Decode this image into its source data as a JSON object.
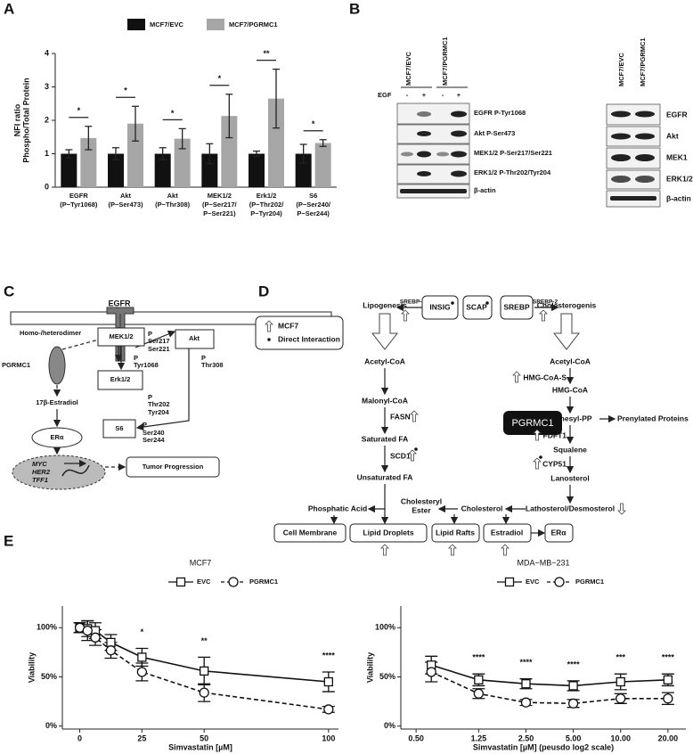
{
  "panel_labels": [
    "A",
    "B",
    "C",
    "D",
    "E"
  ],
  "chart_data": [
    {
      "type": "bar",
      "y_label": [
        "NFI ratio",
        "Phospho/Total Protein"
      ],
      "categories": [
        [
          "EGFR",
          "(P−Tyr1068)"
        ],
        [
          "Akt",
          "(P−Ser473)"
        ],
        [
          "Akt",
          "(P−Thr308)"
        ],
        [
          "MEK1/2",
          "(P−Ser217/",
          "P−Ser221)"
        ],
        [
          "Erk1/2",
          "(P−Thr202/",
          "P−Tyr204)"
        ],
        [
          "S6",
          "(P−Ser240/",
          "P−Ser244)"
        ]
      ],
      "series": [
        {
          "name": "MCF7/EVC",
          "color": "#111111",
          "values": [
            1,
            1,
            1,
            1,
            1,
            1
          ],
          "errors": [
            0.12,
            0.18,
            0.18,
            0.3,
            0.08,
            0.28
          ]
        },
        {
          "name": "MCF7/PGRMC1",
          "color": "#a6a6a6",
          "values": [
            1.47,
            1.9,
            1.45,
            2.13,
            2.65,
            1.32
          ],
          "errors": [
            0.35,
            0.52,
            0.3,
            0.65,
            0.88,
            0.1
          ]
        }
      ],
      "significance": [
        "*",
        "*",
        "*",
        "*",
        "**",
        "*"
      ],
      "ylim": [
        0,
        4
      ],
      "yticks": [
        0,
        1,
        2,
        3,
        4
      ]
    },
    {
      "type": "line",
      "title": "MCF7",
      "x_label": "Simvastatin [µM]",
      "y_label": "Viability",
      "x": [
        0,
        3.125,
        6.25,
        12.5,
        25,
        50,
        100
      ],
      "series": [
        {
          "name": "EVC",
          "color": "#111111",
          "marker": "square",
          "dash": false,
          "values": [
            100,
            99,
            97,
            85,
            70,
            56,
            45
          ],
          "errors": [
            5,
            8,
            8,
            8,
            9,
            14,
            10
          ]
        },
        {
          "name": "PGRMC1",
          "color": "#111111",
          "marker": "circle",
          "dash": true,
          "values": [
            100,
            97,
            90,
            77,
            55,
            34,
            17
          ],
          "errors": [
            5,
            10,
            8,
            8,
            9,
            9,
            3
          ]
        }
      ],
      "annotations": [
        {
          "x": 25,
          "label": "*"
        },
        {
          "x": 50,
          "label": "**"
        },
        {
          "x": 100,
          "label": "****"
        }
      ],
      "xlim": [
        -7,
        104
      ],
      "xticks": [
        0,
        25,
        50,
        100
      ],
      "ylim": [
        -3,
        122
      ],
      "yticks": [
        {
          "value": 0,
          "label": "0%"
        },
        {
          "value": 50,
          "label": "50%"
        },
        {
          "value": 100,
          "label": "100%"
        }
      ]
    },
    {
      "type": "line",
      "title": "MDA−MB−231",
      "x_label": "Simvastatin [µM] (peusdo log2 scale)",
      "y_label": "Viability",
      "x_scale": "log2",
      "x": [
        0.625,
        1.25,
        2.5,
        5,
        10,
        20
      ],
      "series": [
        {
          "name": "EVC",
          "color": "#111111",
          "marker": "square",
          "dash": false,
          "values": [
            62,
            47,
            43,
            41,
            45,
            47
          ],
          "errors": [
            9,
            6,
            5,
            5,
            8,
            6
          ]
        },
        {
          "name": "PGRMC1",
          "color": "#111111",
          "marker": "circle",
          "dash": true,
          "values": [
            55,
            33,
            24,
            23,
            28,
            28
          ],
          "errors": [
            10,
            5,
            3,
            4,
            5,
            6
          ]
        }
      ],
      "annotations": [
        {
          "x": 1.25,
          "label": "****"
        },
        {
          "x": 2.5,
          "label": "****"
        },
        {
          "x": 5,
          "label": "****"
        },
        {
          "x": 10,
          "label": "***"
        },
        {
          "x": 20,
          "label": "****"
        }
      ],
      "xlim": [
        0.4,
        26
      ],
      "xticks": [
        {
          "value": 0.5,
          "label": "0.50"
        },
        {
          "value": 1.25,
          "label": "1.25"
        },
        {
          "value": 2.5,
          "label": "2.50"
        },
        {
          "value": 5,
          "label": "5.00"
        },
        {
          "value": 10,
          "label": "10.00"
        },
        {
          "value": 20,
          "label": "20.00"
        }
      ],
      "ylim": [
        -3,
        122
      ],
      "yticks": [
        {
          "value": 0,
          "label": "0%"
        },
        {
          "value": 50,
          "label": "50%"
        },
        {
          "value": 100,
          "label": "100%"
        }
      ]
    }
  ],
  "blot": {
    "left_groups": [
      "MCF7/EVC",
      "MCF7/PGRMC1"
    ],
    "treatment": "EGF",
    "lanes": [
      "-",
      "+",
      "-",
      "+"
    ],
    "left_rows": [
      "EGFR P-Tyr1068",
      "Akt P-Ser473",
      "MEK1/2 P-Ser217/Ser221",
      "ERK1/2 P-Thr202/Tyr204",
      "β-actin"
    ],
    "right_groups": [
      "MCF7/EVC",
      "MCF7/PGRMC1"
    ],
    "right_rows": [
      "EGFR",
      "Akt",
      "MEK1",
      "ERK1/2",
      "β-actin"
    ]
  },
  "signaling": {
    "receptor": "EGFR",
    "dimer": "Homo-/heterodimer",
    "pgrmc1": "PGRMC1",
    "estradiol": "17β-Estradiol",
    "er": "ERα",
    "genes": [
      "MYC",
      "HER2",
      "TFF1"
    ],
    "egfr_sites": [
      "P",
      "Tyr1068"
    ],
    "mek": "MEK1/2",
    "mek_sites": [
      "P",
      "Ser217",
      "Ser221"
    ],
    "akt": "Akt",
    "akt_sites": [
      "P",
      "Thr308"
    ],
    "erk": "Erk1/2",
    "erk_sites": [
      "P",
      "Thr202",
      "Tyr204"
    ],
    "s6": "S6",
    "s6_sites": [
      "P",
      "Ser240",
      "Ser244"
    ],
    "outcome": "Tumor Progression"
  },
  "metabolism": {
    "lipogenesis": "Lipogenesis",
    "cholesterogenesis": "Cholesterogenis",
    "srebp1": "SREBP-1",
    "insig": "INSIG",
    "scap": "SCAP",
    "srebp": "SREBP",
    "srebp2": "SREBP-2",
    "legend": [
      "MCF7",
      "Direct Interaction"
    ],
    "center": "PGRMC1",
    "lipo_steps": [
      "Acetyl-CoA",
      "Malonyl-CoA",
      "Saturated FA",
      "Unsaturated FA"
    ],
    "lipo_enzymes": [
      "FASN",
      "SCD1"
    ],
    "chol_steps": [
      "Acetyl-CoA",
      "HMG-CoA",
      "Farnesyl-PP",
      "Squalene",
      "Lanosterol",
      "Lathosterol/Desmosterol"
    ],
    "chol_enzymes": [
      "HMG-CoA-S",
      "FDFT1",
      "CYP51"
    ],
    "side_product": "Prenylated Proteins",
    "phosphatic": "Phosphatic Acid",
    "cholesteryl_ester": [
      "Cholesteryl",
      "Ester"
    ],
    "cholesterol": "Cholesterol",
    "destinations": [
      "Cell Membrane",
      "Lipid Droplets",
      "Lipid Rafts",
      "Estradiol",
      "ERα"
    ]
  }
}
